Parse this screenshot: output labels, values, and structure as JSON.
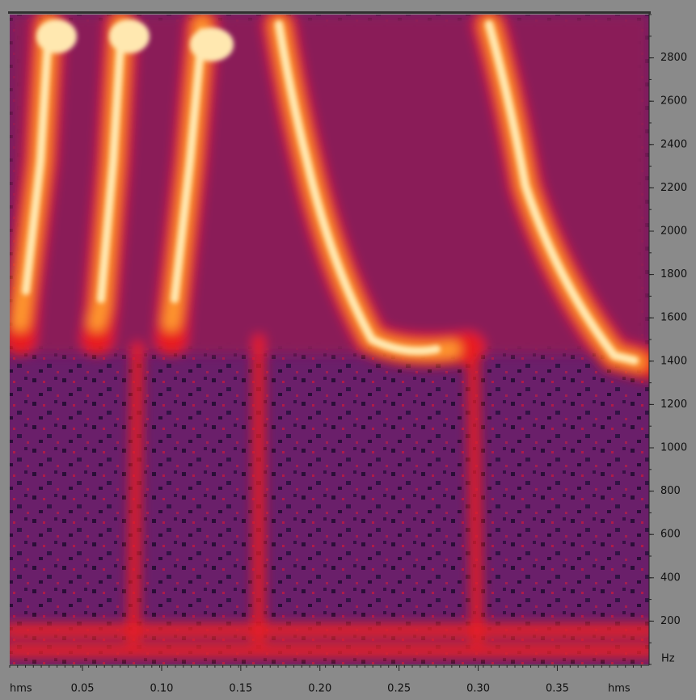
{
  "chart_data": {
    "type": "spectrogram",
    "x_unit": "hms",
    "y_unit": "Hz",
    "xlim": [
      0.004,
      0.408
    ],
    "xticks": [
      0.05,
      {
        "value": 0.1,
        "label": "0.10"
      },
      0.15,
      {
        "value": 0.2,
        "label": "0.20"
      },
      0.25,
      {
        "value": 0.3,
        "label": "0.30"
      },
      0.35
    ],
    "ylim": [
      0,
      3000
    ],
    "yticks": [
      200,
      400,
      600,
      800,
      1000,
      1200,
      1400,
      1600,
      1800,
      2000,
      2200,
      2400,
      2600,
      2800
    ]
  }
}
